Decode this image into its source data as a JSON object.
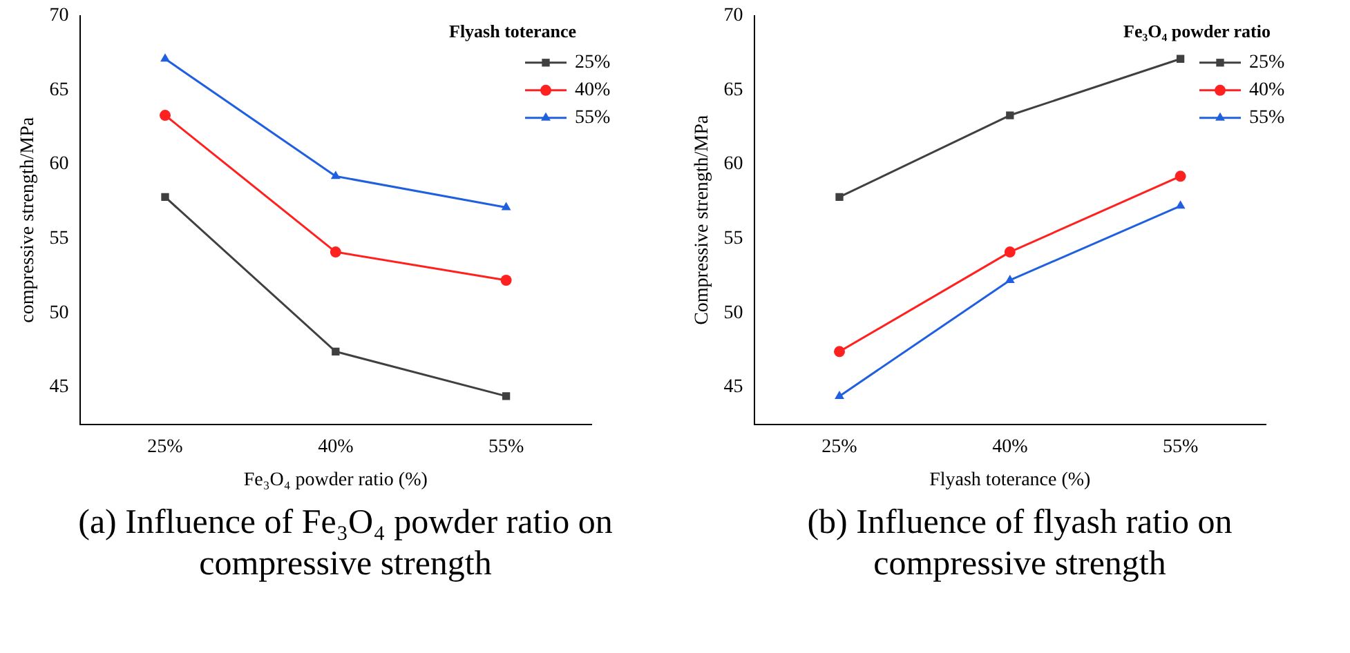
{
  "chart_data": [
    {
      "type": "line",
      "xlabel": "Fe₃O₄ powder ratio (%)",
      "ylabel": "compressive strength/MPa",
      "legend_title": "Flyash toterance",
      "categories": [
        "25%",
        "40%",
        "55%"
      ],
      "series": [
        {
          "name": "25%",
          "color": "#404040",
          "marker": "square",
          "values": [
            57.8,
            47.4,
            44.4
          ]
        },
        {
          "name": "40%",
          "color": "#ff2020",
          "marker": "circle",
          "values": [
            63.3,
            54.1,
            52.2
          ]
        },
        {
          "name": "55%",
          "color": "#2060e0",
          "marker": "triangle",
          "values": [
            67.1,
            59.2,
            57.1
          ]
        }
      ],
      "ylim": [
        42.5,
        70
      ],
      "yticks": [
        45,
        50,
        55,
        60,
        65,
        70
      ],
      "legend": "top right",
      "line_style": "solid",
      "annotations": [
        "(a) Influence of Fe₃O₄ powder ratio on compressive strength"
      ]
    },
    {
      "type": "line",
      "xlabel": "Flyash toterance (%)",
      "ylabel": "Compressive strength/MPa",
      "legend_title": "Fe₃O₄ powder ratio",
      "categories": [
        "25%",
        "40%",
        "55%"
      ],
      "series": [
        {
          "name": "25%",
          "color": "#404040",
          "marker": "square",
          "values": [
            57.8,
            63.3,
            67.1
          ]
        },
        {
          "name": "40%",
          "color": "#ff2020",
          "marker": "circle",
          "values": [
            47.4,
            54.1,
            59.2
          ]
        },
        {
          "name": "55%",
          "color": "#2060e0",
          "marker": "triangle",
          "values": [
            44.4,
            52.2,
            57.2
          ]
        }
      ],
      "ylim": [
        42.5,
        70
      ],
      "yticks": [
        45,
        50,
        55,
        60,
        65,
        70
      ],
      "legend": "top right",
      "line_style": "solid",
      "annotations": [
        "(b) Influence of flyash ratio on compressive strength"
      ]
    }
  ]
}
